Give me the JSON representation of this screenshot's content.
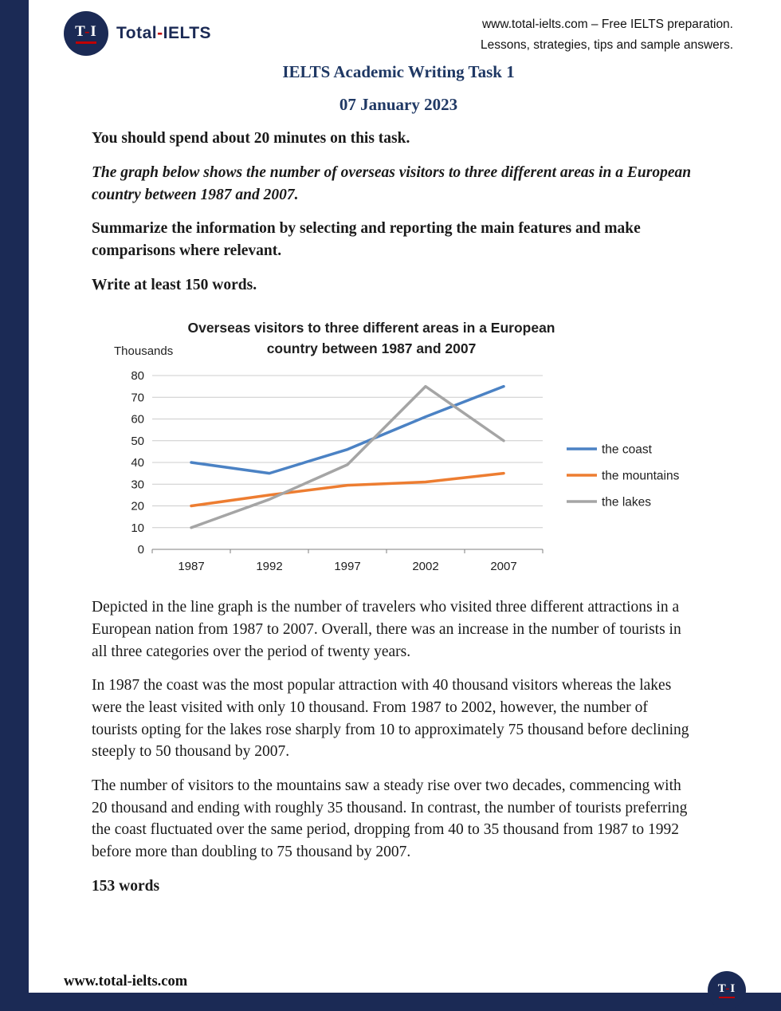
{
  "colors": {
    "navy_bar": "#1b2a55",
    "heading_blue": "#1f3864",
    "accent_red": "#c00000"
  },
  "header": {
    "logo": {
      "t": "T",
      "sep": "-",
      "i": "I"
    },
    "brand": {
      "left": "Total",
      "sep": "-",
      "right": "IELTS"
    },
    "tagline_line1": "www.total-ielts.com – Free IELTS preparation.",
    "tagline_line2": "Lessons, strategies, tips and sample answers."
  },
  "title": "IELTS Academic Writing Task 1",
  "date": "07 January 2023",
  "task": {
    "instruction": "You should spend about 20 minutes on this task.",
    "prompt": "The graph below shows the number of overseas visitors to three different areas in a European country between 1987 and 2007.",
    "summarize": "Summarize the information by selecting and reporting the main features and make comparisons where relevant.",
    "word_count": "Write at least 150 words."
  },
  "chart_data": {
    "type": "line",
    "title": "Overseas visitors to three different areas in a European country between 1987 and 2007",
    "title_lines": [
      "Overseas visitors to three different areas in a European",
      "country between 1987 and 2007"
    ],
    "ylabel": "Thousands",
    "xlabel": "",
    "x": [
      "1987",
      "1992",
      "1997",
      "2002",
      "2007"
    ],
    "ylim": [
      0,
      80
    ],
    "ytick_step": 10,
    "grid": true,
    "legend_position": "right",
    "series": [
      {
        "name": "the coast",
        "color": "#4B82C4",
        "values": [
          40,
          35,
          46,
          61,
          75
        ]
      },
      {
        "name": "the mountains",
        "color": "#ED7D31",
        "values": [
          20,
          25,
          29.5,
          31,
          35
        ]
      },
      {
        "name": "the lakes",
        "color": "#A5A5A5",
        "values": [
          10,
          23,
          39,
          75,
          50
        ]
      }
    ]
  },
  "essay": {
    "paragraph1": "Depicted in the line graph is the number of travelers who visited three different attractions in a European nation from 1987 to 2007. Overall, there was an increase in the number of tourists in all three categories over the period of twenty years.",
    "paragraph2": "In 1987 the coast was the most popular attraction with 40 thousand visitors whereas the lakes were the least visited with only 10 thousand. From 1987 to 2002, however, the number of tourists opting for the lakes rose sharply from 10 to approximately 75 thousand before declining steeply to 50 thousand by 2007.",
    "paragraph3": "The number of visitors to the mountains saw a steady rise over two decades, commencing with 20 thousand and ending with roughly 35 thousand. In contrast, the number of tourists preferring the coast fluctuated over the same period, dropping from 40 to 35 thousand from 1987 to 1992 before more than doubling to 75 thousand by 2007.",
    "word_count": "153 words"
  },
  "footer": {
    "url": "www.total-ielts.com",
    "logo": {
      "t": "T",
      "sep": "-",
      "i": "I"
    }
  }
}
